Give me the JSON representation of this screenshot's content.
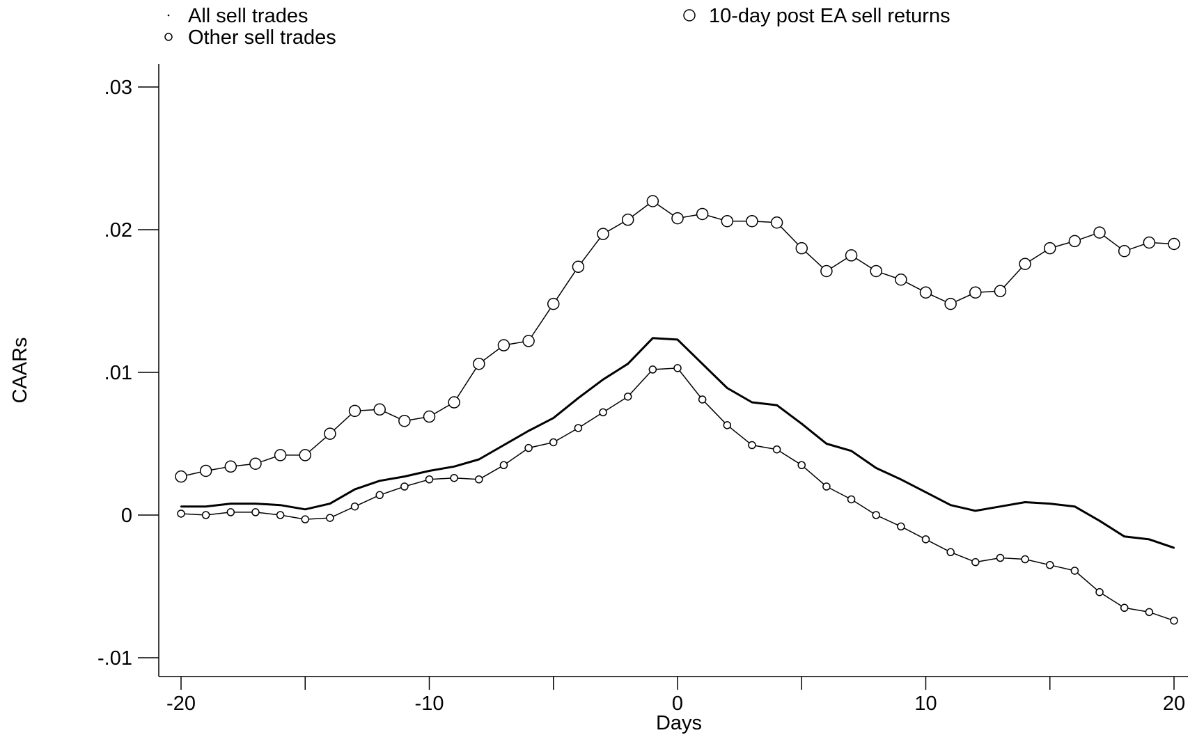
{
  "chart_data": {
    "type": "line",
    "xlabel": "Days",
    "ylabel": "CAARs",
    "xlim": [
      -20,
      20
    ],
    "ylim": [
      -0.01,
      0.03
    ],
    "x_ticks": [
      -20,
      -15,
      -10,
      -5,
      0,
      5,
      10,
      15,
      20
    ],
    "x_tick_labels": [
      "-20",
      "",
      "-10",
      "",
      "0",
      "",
      "10",
      "",
      "20"
    ],
    "y_ticks": [
      -0.01,
      0,
      0.01,
      0.02,
      0.03
    ],
    "y_tick_labels": [
      "-.01",
      "0",
      ".01",
      ".02",
      ".03"
    ],
    "grid": false,
    "legend": {
      "placement": "top",
      "entries": [
        {
          "label": "All sell trades",
          "marker": "dot"
        },
        {
          "label": "Other sell trades",
          "marker": "small-circle"
        },
        {
          "label": "10-day post EA sell returns",
          "marker": "large-circle"
        }
      ]
    },
    "x": [
      -20,
      -19,
      -18,
      -17,
      -16,
      -15,
      -14,
      -13,
      -12,
      -11,
      -10,
      -9,
      -8,
      -7,
      -6,
      -5,
      -4,
      -3,
      -2,
      -1,
      0,
      1,
      2,
      3,
      4,
      5,
      6,
      7,
      8,
      9,
      10,
      11,
      12,
      13,
      14,
      15,
      16,
      17,
      18,
      19,
      20
    ],
    "series": [
      {
        "name": "All sell trades",
        "marker": "dot",
        "line": "thick",
        "color": "#000000",
        "values": [
          0.0006,
          0.0006,
          0.0008,
          0.0008,
          0.0007,
          0.0004,
          0.0008,
          0.0018,
          0.0024,
          0.0027,
          0.0031,
          0.0034,
          0.0039,
          0.0049,
          0.0059,
          0.0068,
          0.0082,
          0.0095,
          0.0106,
          0.0124,
          0.0123,
          0.0106,
          0.0089,
          0.0079,
          0.0077,
          0.0064,
          0.005,
          0.0045,
          0.0033,
          0.0025,
          0.0016,
          0.0007,
          0.0003,
          0.0006,
          0.0009,
          0.0008,
          0.0006,
          -0.0004,
          -0.0015,
          -0.0017,
          -0.0023
        ]
      },
      {
        "name": "Other sell trades",
        "marker": "small-circle",
        "line": "thin",
        "color": "#000000",
        "values": [
          0.0001,
          0.0,
          0.0002,
          0.0002,
          0.0,
          -0.0003,
          -0.0002,
          0.0006,
          0.0014,
          0.002,
          0.0025,
          0.0026,
          0.0025,
          0.0035,
          0.0047,
          0.0051,
          0.0061,
          0.0072,
          0.0083,
          0.0102,
          0.0103,
          0.0081,
          0.0063,
          0.0049,
          0.0046,
          0.0035,
          0.002,
          0.0011,
          0.0,
          -0.0008,
          -0.0017,
          -0.0026,
          -0.0033,
          -0.003,
          -0.0031,
          -0.0035,
          -0.0039,
          -0.0054,
          -0.0065,
          -0.0068,
          -0.0074
        ]
      },
      {
        "name": "10-day post EA sell returns",
        "marker": "large-circle",
        "line": "thin",
        "color": "#000000",
        "values": [
          0.0027,
          0.0031,
          0.0034,
          0.0036,
          0.0042,
          0.0042,
          0.0057,
          0.0073,
          0.0074,
          0.0066,
          0.0069,
          0.0079,
          0.0106,
          0.0119,
          0.0122,
          0.0148,
          0.0174,
          0.0197,
          0.0207,
          0.022,
          0.0208,
          0.0211,
          0.0206,
          0.0206,
          0.0205,
          0.0187,
          0.0171,
          0.0182,
          0.0171,
          0.0165,
          0.0156,
          0.0148,
          0.0156,
          0.0157,
          0.0176,
          0.0187,
          0.0192,
          0.0198,
          0.0185,
          0.0191,
          0.019
        ]
      }
    ]
  }
}
